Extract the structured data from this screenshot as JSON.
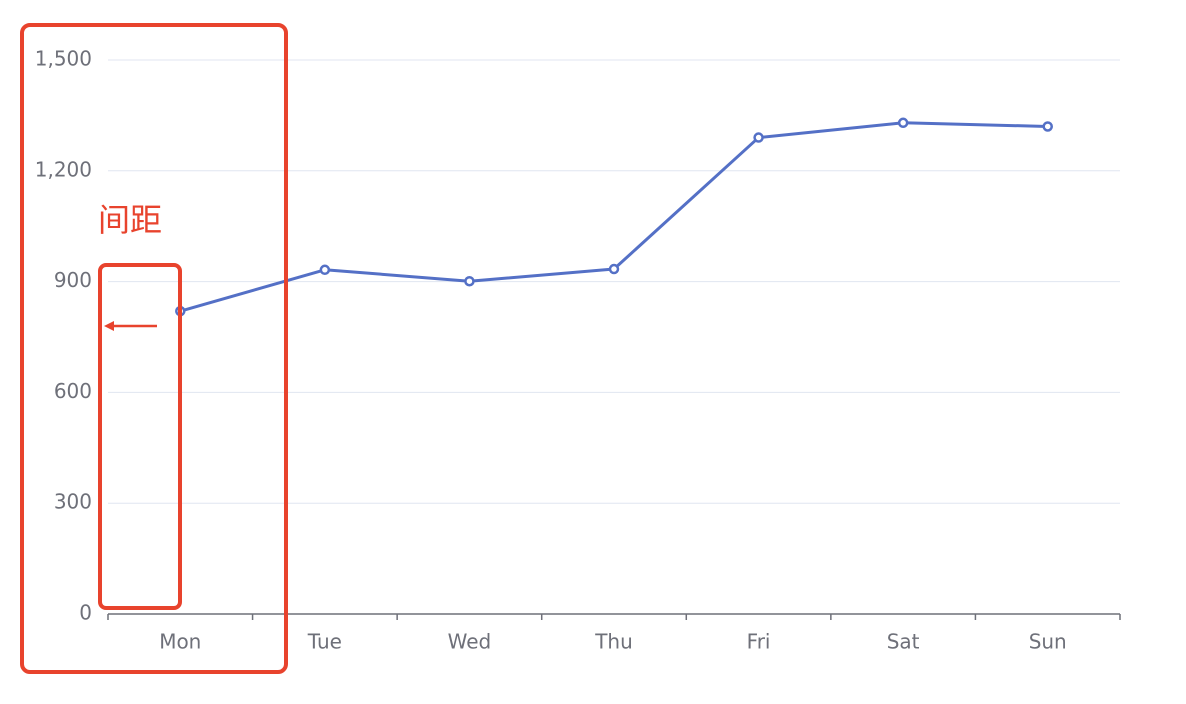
{
  "chart_data": {
    "type": "line",
    "categories": [
      "Mon",
      "Tue",
      "Wed",
      "Thu",
      "Fri",
      "Sat",
      "Sun"
    ],
    "series": [
      {
        "color": "#5470c6",
        "values": [
          820,
          932,
          901,
          934,
          1290,
          1330,
          1320
        ]
      }
    ],
    "ylim": [
      0,
      1500
    ],
    "yticks": [
      0,
      300,
      600,
      900,
      {
        "value": 1200,
        "label": "1,200"
      },
      {
        "value": 1500,
        "label": "1,500"
      }
    ],
    "grid": true,
    "annotation": "间距"
  }
}
